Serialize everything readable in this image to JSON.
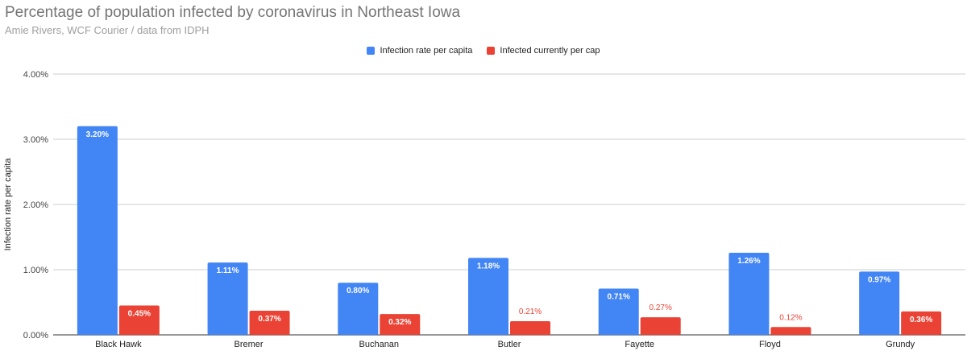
{
  "header": {
    "title": "Percentage of population infected by coronavirus in Northeast Iowa",
    "subtitle": "Amie Rivers, WCF Courier / data from IDPH"
  },
  "legend": {
    "items": [
      {
        "label": "Infection rate per capita",
        "color": "#4285f4"
      },
      {
        "label": "Infected currently per cap",
        "color": "#ea4335"
      }
    ]
  },
  "chart_data": {
    "type": "bar",
    "title": "Percentage of population infected by coronavirus in Northeast Iowa",
    "subtitle": "Amie Rivers, WCF Courier / data from IDPH",
    "xlabel": "",
    "ylabel": "Infection rate per capita",
    "ylim": [
      0,
      4
    ],
    "yticks": [
      "0.00%",
      "1.00%",
      "2.00%",
      "3.00%",
      "4.00%"
    ],
    "grid": true,
    "legend_position": "top",
    "categories": [
      "Black Hawk",
      "Bremer",
      "Buchanan",
      "Butler",
      "Fayette",
      "Floyd",
      "Grundy"
    ],
    "series": [
      {
        "name": "Infection rate per capita",
        "color": "#4285f4",
        "values": [
          3.2,
          1.11,
          0.8,
          1.18,
          0.71,
          1.26,
          0.97
        ],
        "labels": [
          "3.20%",
          "1.11%",
          "0.80%",
          "1.18%",
          "0.71%",
          "1.26%",
          "0.97%"
        ]
      },
      {
        "name": "Infected currently per cap",
        "color": "#ea4335",
        "values": [
          0.45,
          0.37,
          0.32,
          0.21,
          0.27,
          0.12,
          0.36
        ],
        "labels": [
          "0.45%",
          "0.37%",
          "0.32%",
          "0.21%",
          "0.27%",
          "0.12%",
          "0.36%"
        ]
      }
    ]
  }
}
